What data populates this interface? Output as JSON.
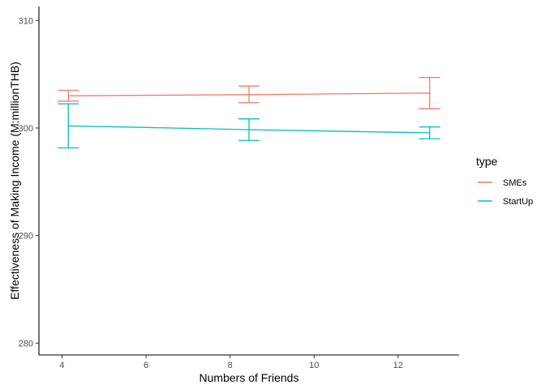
{
  "chart_data": {
    "type": "line",
    "title": "",
    "xlabel": "Numbers of Friends",
    "ylabel": "Effectiveness of Making Income (M:millionTHB)",
    "xlim": [
      3.45,
      13.45
    ],
    "ylim": [
      278.9,
      311.3
    ],
    "x_ticks": [
      4,
      6,
      8,
      10,
      12
    ],
    "y_ticks": [
      280,
      290,
      300,
      310
    ],
    "grid": false,
    "legend": {
      "title": "type",
      "position": "right"
    },
    "series": [
      {
        "name": "SMEs",
        "color": "#F8766D",
        "points": [
          {
            "x": 4.15,
            "y": 303.0,
            "ymin": 302.5,
            "ymax": 303.5
          },
          {
            "x": 8.45,
            "y": 303.1,
            "ymin": 302.35,
            "ymax": 303.9
          },
          {
            "x": 12.75,
            "y": 303.25,
            "ymin": 301.8,
            "ymax": 304.7
          }
        ]
      },
      {
        "name": "StartUp",
        "color": "#00BFC4",
        "points": [
          {
            "x": 4.15,
            "y": 300.2,
            "ymin": 298.15,
            "ymax": 302.25
          },
          {
            "x": 8.45,
            "y": 299.85,
            "ymin": 298.85,
            "ymax": 300.85
          },
          {
            "x": 12.75,
            "y": 299.55,
            "ymin": 299.0,
            "ymax": 300.1
          }
        ]
      }
    ]
  }
}
